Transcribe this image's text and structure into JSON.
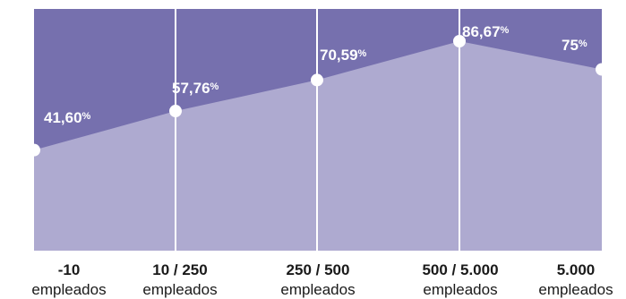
{
  "chart_data": {
    "type": "area",
    "categories": [
      {
        "main": "-10",
        "sub": "empleados"
      },
      {
        "main": "10 / 250",
        "sub": "empleados"
      },
      {
        "main": "250 / 500",
        "sub": "empleados"
      },
      {
        "main": "500 / 5.000",
        "sub": "empleados"
      },
      {
        "main": "5.000",
        "sub": "empleados"
      }
    ],
    "values": [
      41.6,
      57.76,
      70.59,
      86.67,
      75
    ],
    "value_labels": [
      "41,60",
      "57,76",
      "70,59",
      "86,67",
      "75"
    ],
    "value_suffix": "%",
    "ylim": [
      0,
      100
    ],
    "grid": false,
    "colors": {
      "area_fill": "#aeaad0",
      "background_fill": "#7670ae",
      "divider": "#ffffff",
      "point": "#ffffff",
      "label_text": "#ffffff",
      "category_text": "#1a1a1a"
    }
  }
}
